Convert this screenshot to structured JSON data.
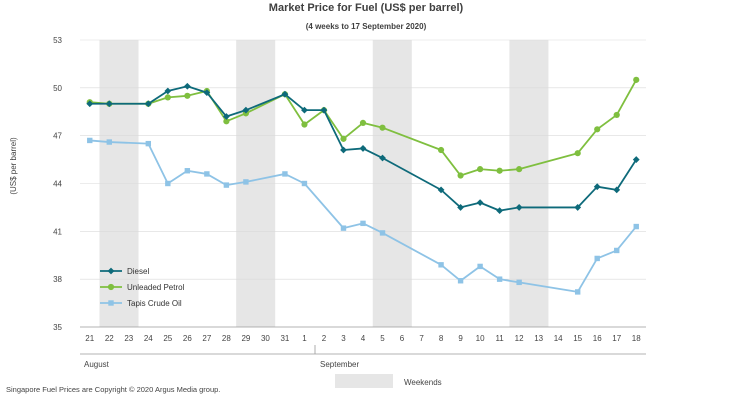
{
  "chart_data": {
    "type": "line",
    "title": "Market Price for Fuel (US$  per barrel)",
    "subtitle": "(4 weeks to 17 September 2020)",
    "ylabel": "(US$ per barrel)",
    "ylim": [
      35,
      53
    ],
    "yticks": [
      35,
      38,
      41,
      44,
      47,
      50,
      53
    ],
    "categories": [
      "21",
      "22",
      "23",
      "24",
      "25",
      "26",
      "27",
      "28",
      "29",
      "30",
      "31",
      "1",
      "2",
      "3",
      "4",
      "5",
      "6",
      "7",
      "8",
      "9",
      "10",
      "11",
      "12",
      "13",
      "14",
      "15",
      "16",
      "17",
      "18"
    ],
    "month_labels": [
      "August",
      "September"
    ],
    "weekend_ranges": [
      [
        1,
        2
      ],
      [
        8,
        9
      ],
      [
        15,
        16
      ],
      [
        22,
        23
      ]
    ],
    "weekends_label": "Weekends",
    "grid": true,
    "legend_position": "bottom-left",
    "series": [
      {
        "name": "Diesel",
        "color": "#0e6a7a",
        "marker": "diamond",
        "values": [
          49.0,
          49.0,
          null,
          49.0,
          49.8,
          50.1,
          49.7,
          48.2,
          48.6,
          null,
          49.6,
          48.6,
          48.6,
          46.1,
          46.2,
          45.6,
          null,
          null,
          43.6,
          42.5,
          42.8,
          42.3,
          42.5,
          null,
          null,
          42.5,
          43.8,
          43.6,
          45.5
        ]
      },
      {
        "name": "Unleaded Petrol",
        "color": "#7fbf3f",
        "marker": "circle",
        "values": [
          49.1,
          49.0,
          null,
          49.0,
          49.4,
          49.5,
          49.8,
          47.9,
          48.4,
          null,
          49.6,
          47.7,
          48.6,
          46.8,
          47.8,
          47.5,
          null,
          null,
          46.1,
          44.5,
          44.9,
          44.8,
          44.9,
          null,
          null,
          45.9,
          47.4,
          48.3,
          50.5
        ]
      },
      {
        "name": "Tapis Crude Oil",
        "color": "#8ec3e6",
        "marker": "square",
        "values": [
          46.7,
          46.6,
          null,
          46.5,
          44.0,
          44.8,
          44.6,
          43.9,
          44.1,
          null,
          44.6,
          44.0,
          null,
          41.2,
          41.5,
          40.9,
          null,
          null,
          38.9,
          37.9,
          38.8,
          38.0,
          37.8,
          null,
          null,
          37.2,
          39.3,
          39.8,
          41.3
        ]
      }
    ],
    "footnote": "Singapore  Fuel Prices are Copyright © 2020 Argus Media group."
  }
}
